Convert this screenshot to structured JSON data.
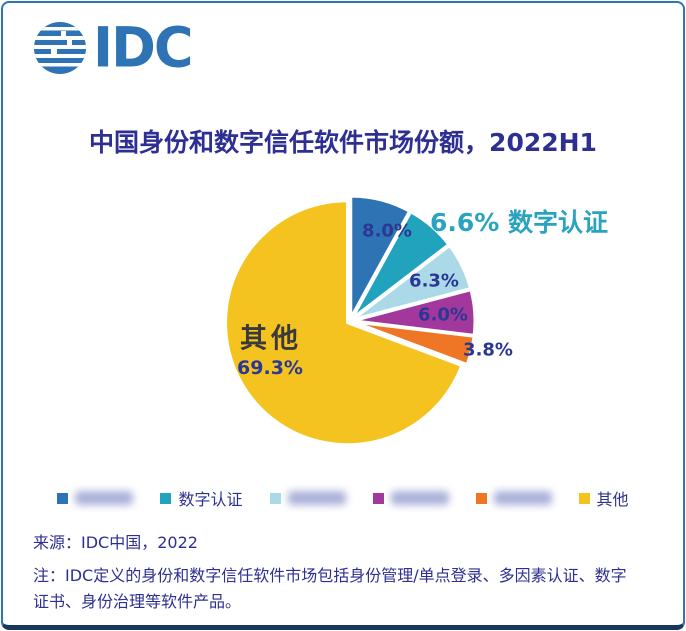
{
  "logo": {
    "text": "IDC",
    "color": "#2e74b5"
  },
  "title": "中国身份和数字信任软件市场份额，2022H1",
  "chart_data": {
    "type": "pie",
    "title": "中国身份和数字信任软件市场份额，2022H1",
    "unit": "percent",
    "start_angle_deg": 0,
    "direction": "clockwise",
    "slices": [
      {
        "label": "",
        "redacted": true,
        "value": 8.0,
        "display": "8.0%",
        "color": "#2e74b5"
      },
      {
        "label": "数字认证",
        "redacted": false,
        "value": 6.6,
        "display": "6.6%",
        "color": "#22a3bd"
      },
      {
        "label": "",
        "redacted": true,
        "value": 6.3,
        "display": "6.3%",
        "color": "#abd9e8"
      },
      {
        "label": "",
        "redacted": true,
        "value": 6.0,
        "display": "6.0%",
        "color": "#a2379c"
      },
      {
        "label": "",
        "redacted": true,
        "value": 3.8,
        "display": "3.8%",
        "color": "#ee7624"
      },
      {
        "label": "其他",
        "redacted": false,
        "value": 69.3,
        "display": "69.3%",
        "color": "#f4c320"
      }
    ],
    "callout_text": "6.6% 数字认证",
    "callout_color": "#29a3be",
    "other_label": "其他",
    "other_display": "69.3%",
    "legend_position": "bottom"
  },
  "footer": {
    "source": "来源：IDC中国，2022",
    "note_lines": [
      "注：IDC定义的身份和数字信任软件市场包括身份管理/单点登录、多因素认证、数字",
      "证书、身份治理等软件产品。"
    ]
  }
}
